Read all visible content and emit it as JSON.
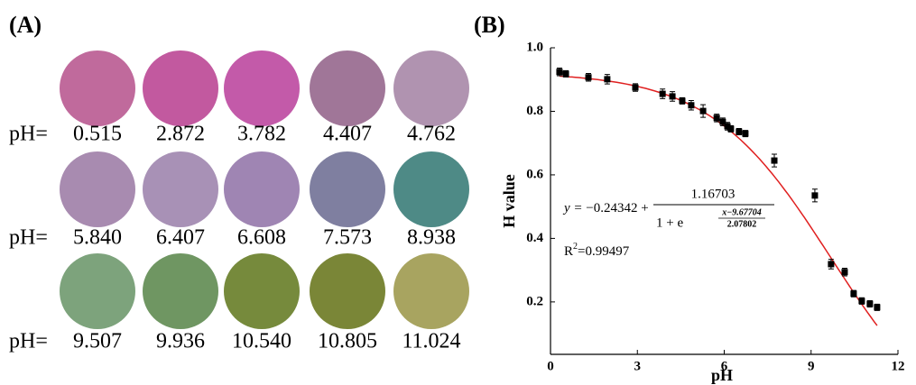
{
  "panel_a": {
    "label": "(A)",
    "prefix": "pH=",
    "samples": [
      {
        "ph": "0.515",
        "color": "#c06a9c"
      },
      {
        "ph": "2.872",
        "color": "#c2599f"
      },
      {
        "ph": "3.782",
        "color": "#c35aa9"
      },
      {
        "ph": "4.407",
        "color": "#a07698"
      },
      {
        "ph": "4.762",
        "color": "#b093b0"
      },
      {
        "ph": "5.840",
        "color": "#a88bb0"
      },
      {
        "ph": "6.407",
        "color": "#a891b6"
      },
      {
        "ph": "6.608",
        "color": "#9f85b3"
      },
      {
        "ph": "7.573",
        "color": "#7f7fa0"
      },
      {
        "ph": "8.938",
        "color": "#4e8a86"
      },
      {
        "ph": "9.507",
        "color": "#7da37c"
      },
      {
        "ph": "9.936",
        "color": "#6f9662"
      },
      {
        "ph": "10.540",
        "color": "#768a3c"
      },
      {
        "ph": "10.805",
        "color": "#7a8637"
      },
      {
        "ph": "11.024",
        "color": "#a8a460"
      }
    ]
  },
  "chart_data": {
    "type": "scatter",
    "title": "(B)",
    "x_label": "pH",
    "y_label": "H value",
    "xlim": [
      0,
      12
    ],
    "ylim": [
      0.035,
      1.0
    ],
    "xticks": [
      0,
      3,
      6,
      9,
      12
    ],
    "yticks": [
      0.2,
      0.4,
      0.6,
      0.8,
      {
        "value": 1,
        "label": "1.0"
      }
    ],
    "x": [
      0.31,
      0.53,
      1.31,
      1.96,
      2.93,
      3.87,
      4.21,
      4.55,
      4.86,
      5.27,
      5.74,
      5.95,
      6.11,
      6.23,
      6.51,
      6.73,
      7.73,
      9.13,
      9.69,
      10.16,
      10.47,
      10.75,
      11.03,
      11.28
    ],
    "series": [
      {
        "color": "#000000",
        "values": [
          0.924,
          0.918,
          0.907,
          0.901,
          0.875,
          0.855,
          0.847,
          0.833,
          0.819,
          0.801,
          0.779,
          0.767,
          0.753,
          0.745,
          0.736,
          0.73,
          0.645,
          0.535,
          0.319,
          0.294,
          0.226,
          0.203,
          0.194,
          0.183
        ],
        "errors": [
          0.012,
          0.01,
          0.012,
          0.015,
          0.012,
          0.015,
          0.015,
          0.01,
          0.015,
          0.02,
          0.012,
          0.012,
          0.012,
          0.01,
          0.01,
          0.01,
          0.02,
          0.02,
          0.015,
          0.012,
          0.01,
          0.01,
          0.01,
          0.01
        ]
      }
    ],
    "fit": {
      "color": "#e02020",
      "lhs": "y = ",
      "a": "−0.24342",
      "plus": " +",
      "b": "1.16703",
      "den": "1 + e",
      "exp_num": "x−9.67704",
      "exp_den": "2.07802",
      "r2_base": "R",
      "r2_sup": "2",
      "r2_value": "=0.99497"
    }
  }
}
